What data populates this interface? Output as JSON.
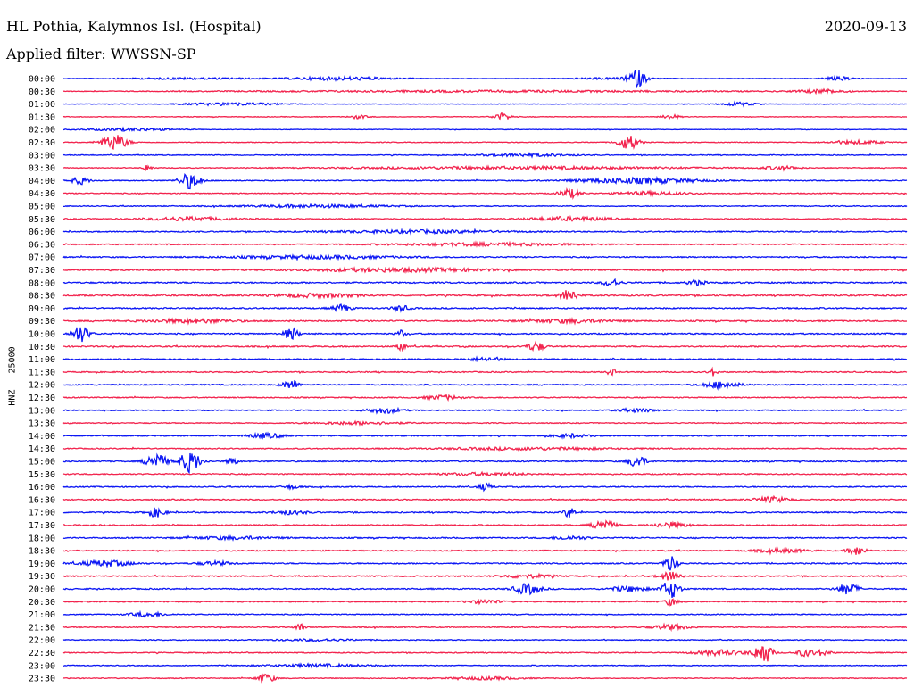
{
  "header": {
    "station": "HL Pothia, Kalymnos Isl. (Hospital)",
    "date": "2020-09-13",
    "filter_text": "Applied filter: WWSSN-SP"
  },
  "colors": {
    "trace_a": "#0b16f4",
    "trace_b": "#f2234d",
    "text": "#000000"
  },
  "chart_data": {
    "type": "line",
    "title": "HL Pothia, Kalymnos Isl. (Hospital)",
    "subtitle": "Applied filter: WWSSN-SP",
    "ylabel": "HNZ - 25000",
    "xlabel": "",
    "date": "2020-09-13",
    "grid": false,
    "legend": "none",
    "row_labels": [
      "00:00",
      "00:30",
      "01:00",
      "01:30",
      "02:00",
      "02:30",
      "03:00",
      "03:30",
      "04:00",
      "04:30",
      "05:00",
      "05:30",
      "06:00",
      "06:30",
      "07:00",
      "07:30",
      "08:00",
      "08:30",
      "09:00",
      "09:30",
      "10:00",
      "10:30",
      "11:00",
      "11:30",
      "12:00",
      "12:30",
      "13:00",
      "13:30",
      "14:00",
      "14:30",
      "15:00",
      "15:30",
      "16:00",
      "16:30",
      "17:00",
      "17:30",
      "18:00",
      "18:30",
      "19:00",
      "19:30",
      "20:00",
      "20:30",
      "21:00",
      "21:30",
      "22:00",
      "22:30",
      "23:00",
      "23:30"
    ],
    "row_color_cycle": [
      "#0b16f4",
      "#f2234d"
    ],
    "rows": [
      {
        "noise": 0.25,
        "events": [
          [
            0.33,
            0.06,
            2
          ],
          [
            0.15,
            0.08,
            1
          ],
          [
            0.68,
            0.01,
            10
          ],
          [
            0.92,
            0.02,
            2
          ],
          [
            0.65,
            0.05,
            1
          ]
        ]
      },
      {
        "noise": 0.3,
        "events": [
          [
            0.9,
            0.03,
            2
          ],
          [
            0.5,
            0.3,
            1
          ]
        ]
      },
      {
        "noise": 0.3,
        "events": [
          [
            0.2,
            0.06,
            1.5
          ],
          [
            0.8,
            0.02,
            2
          ]
        ]
      },
      {
        "noise": 0.35,
        "events": [
          [
            0.52,
            0.01,
            4
          ],
          [
            0.35,
            0.01,
            2
          ],
          [
            0.72,
            0.01,
            2.5
          ]
        ]
      },
      {
        "noise": 0.3,
        "events": [
          [
            0.08,
            0.05,
            1.5
          ]
        ]
      },
      {
        "noise": 0.4,
        "events": [
          [
            0.06,
            0.015,
            9
          ],
          [
            0.67,
            0.012,
            8
          ],
          [
            0.94,
            0.03,
            2
          ]
        ]
      },
      {
        "noise": 0.45,
        "events": [
          [
            0.55,
            0.05,
            1.5
          ]
        ]
      },
      {
        "noise": 0.4,
        "events": [
          [
            0.1,
            0.005,
            4
          ],
          [
            0.55,
            0.2,
            1.5
          ],
          [
            0.85,
            0.02,
            2
          ]
        ]
      },
      {
        "noise": 0.5,
        "events": [
          [
            0.15,
            0.012,
            9
          ],
          [
            0.68,
            0.07,
            3
          ],
          [
            0.02,
            0.01,
            4
          ]
        ]
      },
      {
        "noise": 0.5,
        "events": [
          [
            0.6,
            0.012,
            5
          ],
          [
            0.7,
            0.04,
            2
          ]
        ]
      },
      {
        "noise": 0.5,
        "events": [
          [
            0.3,
            0.08,
            1.5
          ]
        ]
      },
      {
        "noise": 0.55,
        "events": [
          [
            0.15,
            0.05,
            2
          ],
          [
            0.6,
            0.05,
            2
          ]
        ]
      },
      {
        "noise": 0.6,
        "events": [
          [
            0.42,
            0.1,
            1.5
          ]
        ]
      },
      {
        "noise": 0.6,
        "events": [
          [
            0.5,
            0.1,
            1.5
          ]
        ]
      },
      {
        "noise": 0.65,
        "events": [
          [
            0.3,
            0.1,
            1.5
          ]
        ]
      },
      {
        "noise": 0.75,
        "events": [
          [
            0.4,
            0.1,
            2
          ]
        ]
      },
      {
        "noise": 0.75,
        "events": [
          [
            0.65,
            0.01,
            4
          ],
          [
            0.75,
            0.01,
            3
          ]
        ]
      },
      {
        "noise": 0.75,
        "events": [
          [
            0.6,
            0.01,
            7
          ],
          [
            0.3,
            0.05,
            2
          ]
        ]
      },
      {
        "noise": 0.7,
        "events": [
          [
            0.33,
            0.01,
            4
          ],
          [
            0.4,
            0.01,
            3
          ]
        ]
      },
      {
        "noise": 0.7,
        "events": [
          [
            0.15,
            0.05,
            2
          ],
          [
            0.6,
            0.05,
            2
          ]
        ]
      },
      {
        "noise": 0.7,
        "events": [
          [
            0.02,
            0.01,
            9
          ],
          [
            0.27,
            0.008,
            7
          ],
          [
            0.4,
            0.005,
            4
          ]
        ]
      },
      {
        "noise": 0.7,
        "events": [
          [
            0.56,
            0.01,
            5
          ],
          [
            0.4,
            0.005,
            5
          ]
        ]
      },
      {
        "noise": 0.6,
        "events": [
          [
            0.5,
            0.02,
            2
          ]
        ]
      },
      {
        "noise": 0.6,
        "events": [
          [
            0.65,
            0.005,
            4
          ],
          [
            0.77,
            0.005,
            4
          ]
        ]
      },
      {
        "noise": 0.6,
        "events": [
          [
            0.27,
            0.01,
            5
          ],
          [
            0.78,
            0.02,
            4
          ]
        ]
      },
      {
        "noise": 0.55,
        "events": [
          [
            0.45,
            0.02,
            2.5
          ]
        ]
      },
      {
        "noise": 0.55,
        "events": [
          [
            0.38,
            0.02,
            3
          ],
          [
            0.68,
            0.02,
            2
          ]
        ]
      },
      {
        "noise": 0.5,
        "events": [
          [
            0.35,
            0.05,
            1.5
          ]
        ]
      },
      {
        "noise": 0.55,
        "events": [
          [
            0.24,
            0.02,
            3
          ],
          [
            0.6,
            0.02,
            2
          ]
        ]
      },
      {
        "noise": 0.55,
        "events": [
          [
            0.55,
            0.1,
            1.3
          ]
        ]
      },
      {
        "noise": 0.65,
        "events": [
          [
            0.11,
            0.012,
            9
          ],
          [
            0.15,
            0.012,
            12
          ],
          [
            0.2,
            0.006,
            5
          ],
          [
            0.68,
            0.01,
            7
          ]
        ]
      },
      {
        "noise": 0.6,
        "events": [
          [
            0.5,
            0.05,
            1.5
          ]
        ]
      },
      {
        "noise": 0.6,
        "events": [
          [
            0.5,
            0.008,
            4
          ],
          [
            0.27,
            0.01,
            2
          ]
        ]
      },
      {
        "noise": 0.6,
        "events": [
          [
            0.84,
            0.02,
            3
          ]
        ]
      },
      {
        "noise": 0.65,
        "events": [
          [
            0.11,
            0.01,
            5
          ],
          [
            0.6,
            0.006,
            6
          ],
          [
            0.27,
            0.02,
            2
          ]
        ]
      },
      {
        "noise": 0.65,
        "events": [
          [
            0.64,
            0.012,
            6
          ],
          [
            0.72,
            0.02,
            3
          ]
        ]
      },
      {
        "noise": 0.65,
        "events": [
          [
            0.2,
            0.05,
            1.5
          ],
          [
            0.6,
            0.02,
            2
          ]
        ]
      },
      {
        "noise": 0.6,
        "events": [
          [
            0.94,
            0.01,
            5
          ],
          [
            0.85,
            0.03,
            2
          ]
        ]
      },
      {
        "noise": 0.65,
        "events": [
          [
            0.72,
            0.008,
            8
          ],
          [
            0.05,
            0.03,
            3
          ],
          [
            0.18,
            0.02,
            2
          ]
        ]
      },
      {
        "noise": 0.65,
        "events": [
          [
            0.72,
            0.012,
            5
          ],
          [
            0.55,
            0.03,
            2
          ]
        ]
      },
      {
        "noise": 0.65,
        "events": [
          [
            0.72,
            0.01,
            10
          ],
          [
            0.55,
            0.015,
            6
          ],
          [
            0.93,
            0.012,
            6
          ],
          [
            0.67,
            0.02,
            3
          ]
        ]
      },
      {
        "noise": 0.6,
        "events": [
          [
            0.72,
            0.008,
            4
          ],
          [
            0.5,
            0.02,
            2
          ]
        ]
      },
      {
        "noise": 0.5,
        "events": [
          [
            0.1,
            0.02,
            2.5
          ]
        ]
      },
      {
        "noise": 0.55,
        "events": [
          [
            0.28,
            0.005,
            5
          ],
          [
            0.72,
            0.02,
            3
          ]
        ]
      },
      {
        "noise": 0.45,
        "events": [
          [
            0.3,
            0.05,
            1
          ]
        ]
      },
      {
        "noise": 0.5,
        "events": [
          [
            0.83,
            0.01,
            12
          ],
          [
            0.78,
            0.03,
            3
          ],
          [
            0.88,
            0.01,
            4
          ],
          [
            0.9,
            0.01,
            3
          ]
        ]
      },
      {
        "noise": 0.45,
        "events": [
          [
            0.3,
            0.06,
            1.5
          ]
        ]
      },
      {
        "noise": 0.45,
        "events": [
          [
            0.24,
            0.01,
            5
          ],
          [
            0.5,
            0.04,
            1.5
          ]
        ]
      }
    ]
  }
}
